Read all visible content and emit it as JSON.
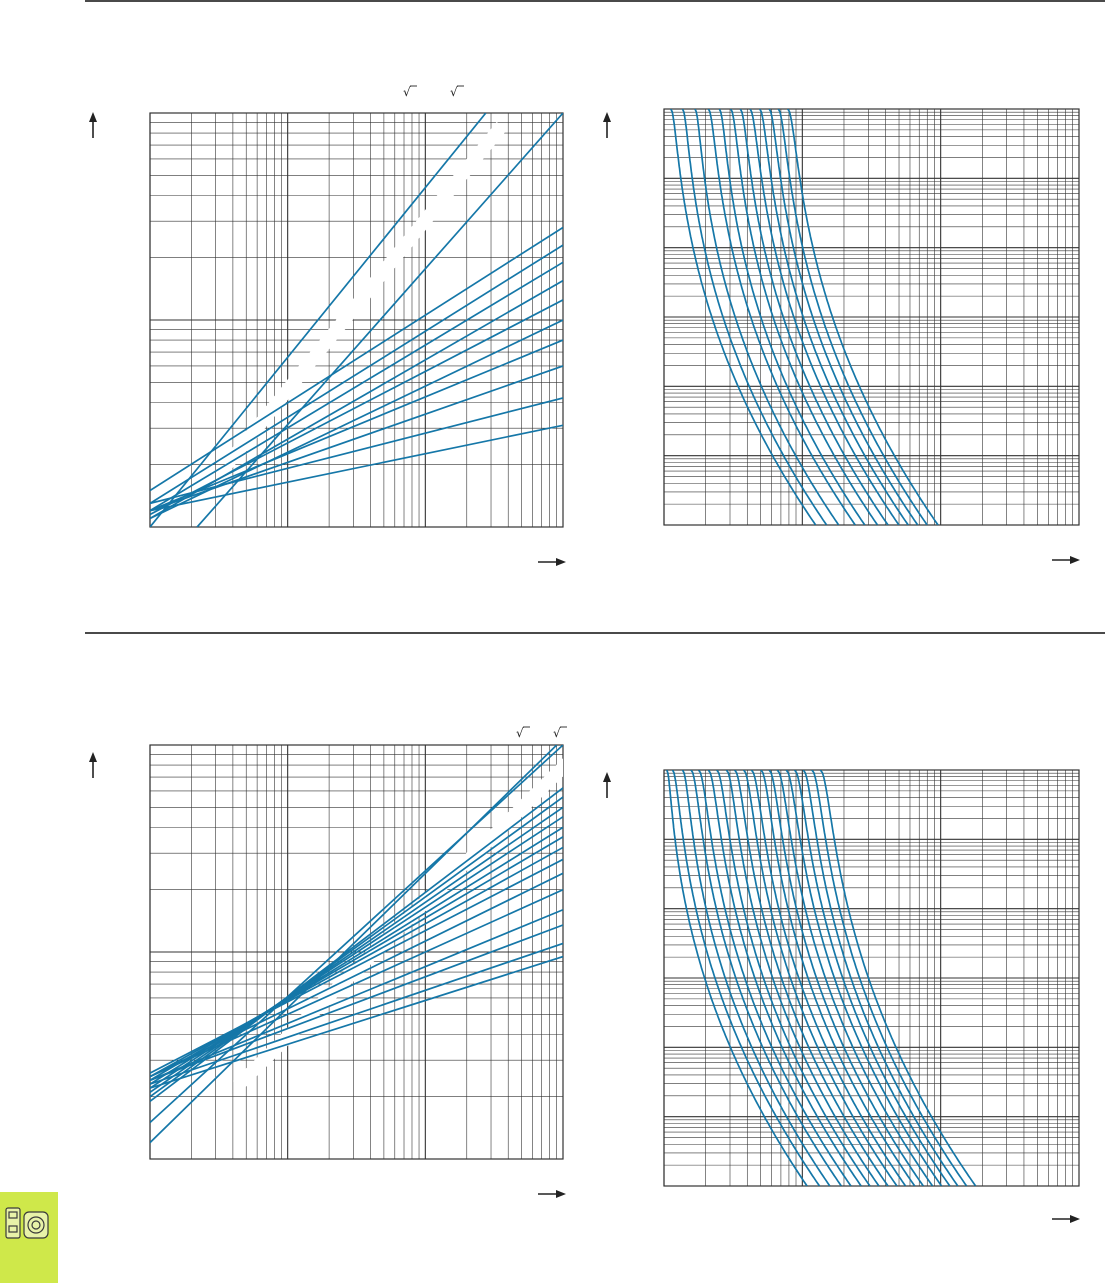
{
  "page": {
    "line_color": "#1577a8",
    "grid_color": "#333333",
    "tab_color": "#cfe84a",
    "tab_icon": "fuse-holder-icon"
  },
  "chart_data": [
    {
      "type": "line",
      "id": "top-left",
      "title": "",
      "xlabel": "",
      "ylabel": "",
      "xscale": "log",
      "yscale": "log",
      "xlim": [
        1,
        1000
      ],
      "ylim": [
        1,
        100
      ],
      "grid": true,
      "annotations": [
        "√",
        "√"
      ],
      "series": [
        {
          "x": [
            1,
            275
          ],
          "y": [
            1,
            100
          ]
        },
        {
          "x": [
            2.2,
            1000
          ],
          "y": [
            1,
            100
          ]
        },
        {
          "x": [
            1,
            1000
          ],
          "y": [
            1.5,
            28
          ]
        },
        {
          "x": [
            1,
            1000
          ],
          "y": [
            1.3,
            23
          ]
        },
        {
          "x": [
            1,
            1000
          ],
          "y": [
            1.2,
            19
          ]
        },
        {
          "x": [
            1,
            1000
          ],
          "y": [
            1.1,
            15.5
          ]
        },
        {
          "x": [
            1,
            1000
          ],
          "y": [
            1.15,
            12.5
          ]
        },
        {
          "x": [
            1,
            1000
          ],
          "y": [
            1.1,
            10
          ]
        },
        {
          "x": [
            1,
            1000
          ],
          "y": [
            1.2,
            8
          ]
        },
        {
          "x": [
            1,
            1000
          ],
          "y": [
            1.2,
            6
          ]
        },
        {
          "x": [
            1,
            1000
          ],
          "y": [
            1.3,
            4.2
          ]
        },
        {
          "x": [
            1,
            1000
          ],
          "y": [
            1.2,
            3.1
          ]
        }
      ]
    },
    {
      "type": "line",
      "id": "top-right",
      "title": "",
      "xlabel": "",
      "ylabel": "",
      "xscale": "log",
      "yscale": "log",
      "xlim": [
        1,
        1000
      ],
      "ylim": [
        0.001,
        1000
      ],
      "grid": true,
      "series": [
        {
          "a": 1.07,
          "b": 1.5
        },
        {
          "a": 1.3,
          "b": 1.8
        },
        {
          "a": 1.6,
          "b": 2.2
        },
        {
          "a": 2.0,
          "b": 2.9
        },
        {
          "a": 2.4,
          "b": 3.4
        },
        {
          "a": 2.9,
          "b": 4.2
        },
        {
          "a": 3.4,
          "b": 5.0
        },
        {
          "a": 4.0,
          "b": 6.0
        },
        {
          "a": 4.7,
          "b": 7.0
        },
        {
          "a": 5.5,
          "b": 8.2
        },
        {
          "a": 6.4,
          "b": 9.6
        },
        {
          "a": 7.5,
          "b": 11.5
        }
      ]
    },
    {
      "type": "line",
      "id": "bottom-left",
      "title": "",
      "xlabel": "",
      "ylabel": "",
      "xscale": "log",
      "yscale": "log",
      "xlim": [
        1,
        1000
      ],
      "ylim": [
        1,
        100
      ],
      "grid": true,
      "annotations": [
        "√",
        "√"
      ],
      "series": [
        {
          "x": [
            1,
            900
          ],
          "y": [
            1.2,
            100
          ]
        },
        {
          "x": [
            1,
            1000
          ],
          "y": [
            1.5,
            100
          ]
        },
        {
          "x": [
            1,
            1000
          ],
          "y": [
            1.9,
            62
          ]
        },
        {
          "x": [
            1,
            1000
          ],
          "y": [
            2.0,
            56
          ]
        },
        {
          "x": [
            1,
            1000
          ],
          "y": [
            2.1,
            50
          ]
        },
        {
          "x": [
            1,
            1000
          ],
          "y": [
            2.2,
            45
          ]
        },
        {
          "x": [
            1,
            1000
          ],
          "y": [
            2.3,
            40
          ]
        },
        {
          "x": [
            1,
            1000
          ],
          "y": [
            2.4,
            36
          ]
        },
        {
          "x": [
            1,
            1000
          ],
          "y": [
            2.5,
            32
          ]
        },
        {
          "x": [
            1,
            1000
          ],
          "y": [
            2.6,
            28
          ]
        },
        {
          "x": [
            1,
            1000
          ],
          "y": [
            2.5,
            24
          ]
        },
        {
          "x": [
            1,
            1000
          ],
          "y": [
            2.5,
            20
          ]
        },
        {
          "x": [
            1,
            1000
          ],
          "y": [
            2.4,
            16
          ]
        },
        {
          "x": [
            1,
            1000
          ],
          "y": [
            2.4,
            13.5
          ]
        },
        {
          "x": [
            1,
            1000
          ],
          "y": [
            2.3,
            11
          ]
        },
        {
          "x": [
            1,
            1000
          ],
          "y": [
            2.2,
            9.5
          ]
        }
      ]
    },
    {
      "type": "line",
      "id": "bottom-right",
      "title": "",
      "xlabel": "",
      "ylabel": "",
      "xscale": "log",
      "yscale": "log",
      "xlim": [
        1,
        1000
      ],
      "ylim": [
        0.001,
        1000
      ],
      "grid": true,
      "series": [
        {
          "a": 1.0,
          "b": 1.3
        },
        {
          "a": 1.1,
          "b": 1.6
        },
        {
          "a": 1.3,
          "b": 1.9
        },
        {
          "a": 1.5,
          "b": 2.3
        },
        {
          "a": 1.7,
          "b": 2.7
        },
        {
          "a": 2.0,
          "b": 3.2
        },
        {
          "a": 2.3,
          "b": 3.7
        },
        {
          "a": 2.7,
          "b": 4.3
        },
        {
          "a": 3.1,
          "b": 5.0
        },
        {
          "a": 3.6,
          "b": 5.8
        },
        {
          "a": 4.1,
          "b": 6.7
        },
        {
          "a": 4.8,
          "b": 7.8
        },
        {
          "a": 5.5,
          "b": 9.0
        },
        {
          "a": 6.3,
          "b": 10.5
        },
        {
          "a": 7.3,
          "b": 12.2
        },
        {
          "a": 8.4,
          "b": 14.0
        },
        {
          "a": 9.7,
          "b": 16.0
        },
        {
          "a": 11.2,
          "b": 18.5
        },
        {
          "a": 12.9,
          "b": 21.5
        }
      ]
    }
  ]
}
